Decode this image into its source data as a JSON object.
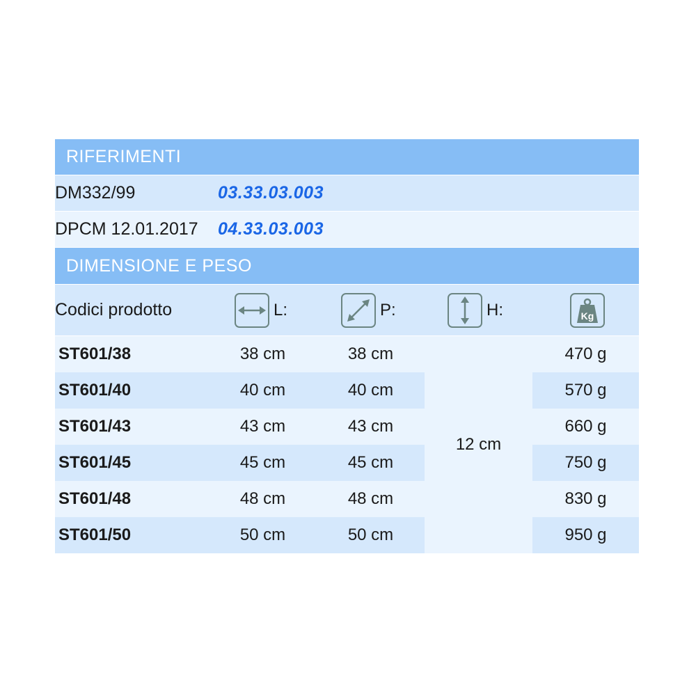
{
  "riferimenti": {
    "title": "RIFERIMENTI",
    "rows": [
      {
        "label": "DM332/99",
        "code": "03.33.03.003"
      },
      {
        "label": "DPCM 12.01.2017",
        "code": "04.33.03.003"
      }
    ]
  },
  "dimensioni": {
    "title": "DIMENSIONE E PESO",
    "headers": {
      "code": "Codici prodotto",
      "l": "L:",
      "p": "P:",
      "h": "H:",
      "weight_icon": "kg-weight-icon",
      "l_icon": "horizontal-arrow-icon",
      "p_icon": "diagonal-arrow-icon",
      "h_icon": "vertical-arrow-icon"
    },
    "height": "12 cm",
    "rows": [
      {
        "code": "ST601/38",
        "l": "38 cm",
        "p": "38 cm",
        "w": "470 g"
      },
      {
        "code": "ST601/40",
        "l": "40 cm",
        "p": "40 cm",
        "w": "570 g"
      },
      {
        "code": "ST601/43",
        "l": "43 cm",
        "p": "43 cm",
        "w": "660 g"
      },
      {
        "code": "ST601/45",
        "l": "45 cm",
        "p": "45 cm",
        "w": "750 g"
      },
      {
        "code": "ST601/48",
        "l": "48 cm",
        "p": "48 cm",
        "w": "830 g"
      },
      {
        "code": "ST601/50",
        "l": "50 cm",
        "p": "50 cm",
        "w": "950 g"
      }
    ]
  },
  "colors": {
    "header": "#86bdf5",
    "row_dark": "#d5e8fc",
    "row_light": "#eaf4fe",
    "code_link": "#1a66e6"
  }
}
